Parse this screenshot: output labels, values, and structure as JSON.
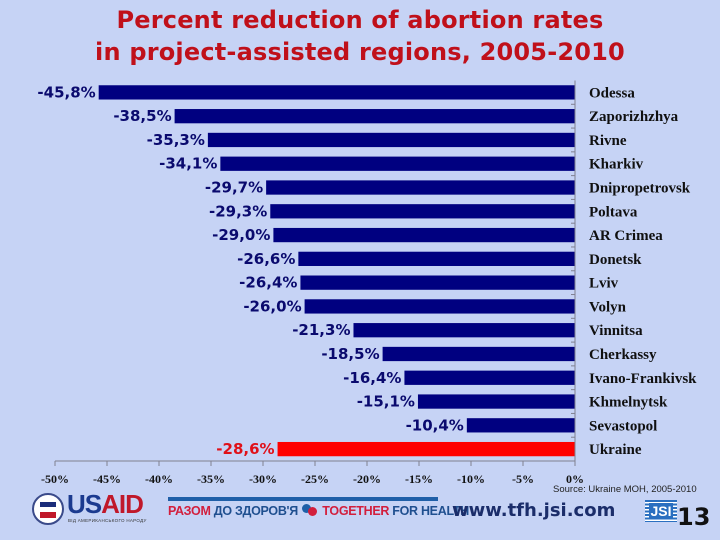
{
  "slide": {
    "title_line1": "Percent reduction of abortion rates",
    "title_line2": "in project-assisted regions, 2005-2010",
    "source": "Source: Ukraine MOH, 2005-2010",
    "url": "www.tfh.jsi.com",
    "page_number": "13",
    "logos": {
      "usaid_us": "US",
      "usaid_aid": "AID",
      "usaid_tagline": "ВІД АМЕРИКАНСЬКОГО НАРОДУ",
      "tfh_part1": "РАЗОМ",
      "tfh_part2": "ДО ЗДОРОВ'Я",
      "tfh_part3": "TOGETHER",
      "tfh_part4": "FOR HEALTH",
      "jsi": "JSI"
    }
  },
  "chart_data": {
    "type": "bar",
    "orientation": "horizontal",
    "title": "Percent reduction of abortion rates in project-assisted regions, 2005-2010",
    "xlabel": "",
    "ylabel": "",
    "xlim": [
      -50,
      0
    ],
    "x_ticks": [
      -50,
      -45,
      -40,
      -35,
      -30,
      -25,
      -20,
      -15,
      -10,
      -5,
      0
    ],
    "x_tick_labels": [
      "-50%",
      "-45%",
      "-40%",
      "-35%",
      "-30%",
      "-25%",
      "-20%",
      "-15%",
      "-10%",
      "-5%",
      "0%"
    ],
    "grid": false,
    "legend": "none",
    "categories": [
      "Odessa",
      "Zaporizhzhya",
      "Rivne",
      "Kharkiv",
      "Dnipropetrovsk",
      "Poltava",
      "AR Crimea",
      "Donetsk",
      "Lviv",
      "Volyn",
      "Vinnitsa",
      "Cherkassy",
      "Ivano-Frankivsk",
      "Khmelnytsk",
      "Sevastopol",
      "Ukraine"
    ],
    "values": [
      -45.8,
      -38.5,
      -35.3,
      -34.1,
      -29.7,
      -29.3,
      -29.0,
      -26.6,
      -26.4,
      -26.0,
      -21.3,
      -18.5,
      -16.4,
      -15.1,
      -10.4,
      -28.6
    ],
    "data_labels": [
      "-45,8%",
      "-38,5%",
      "-35,3%",
      "-34,1%",
      "-29,7%",
      "-29,3%",
      "-29,0%",
      "-26,6%",
      "-26,4%",
      "-26,0%",
      "-21,3%",
      "-18,5%",
      "-16,4%",
      "-15,1%",
      "-10,4%",
      "-28,6%"
    ],
    "highlight": [
      "Ukraine"
    ],
    "colors": {
      "bar": "#000080",
      "highlight_bar": "#ff0000",
      "label": "#0a0a6e",
      "highlight_label": "#e01018",
      "axis": "#808090"
    }
  }
}
